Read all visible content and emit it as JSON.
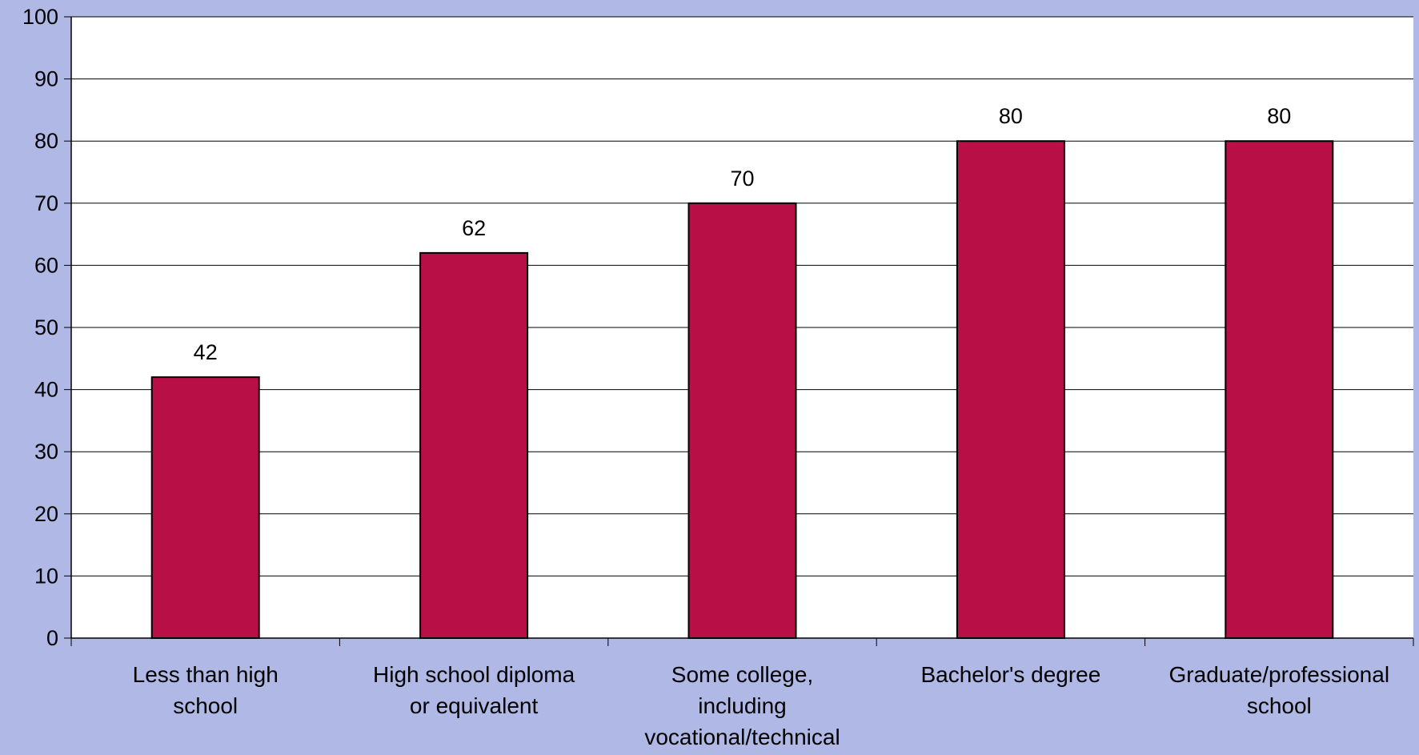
{
  "chart_data": {
    "type": "bar",
    "categories": [
      [
        "Less than high",
        "school"
      ],
      [
        "High school diploma",
        "or equivalent"
      ],
      [
        "Some college,",
        "including",
        "vocational/technical"
      ],
      [
        "Bachelor's degree"
      ],
      [
        "Graduate/professional",
        "school"
      ]
    ],
    "values": [
      42,
      62,
      70,
      80,
      80
    ],
    "data_labels": [
      "42",
      "62",
      "70",
      "80",
      "80"
    ],
    "ylim": [
      0,
      100
    ],
    "yticks": [
      0,
      10,
      20,
      30,
      40,
      50,
      60,
      70,
      80,
      90,
      100
    ],
    "title": "",
    "xlabel": "",
    "ylabel": "",
    "grid": true,
    "legend": "none",
    "colors": {
      "background": "#b0b8e6",
      "plot_area": "#ffffff",
      "bar": "#b80f47",
      "bar_outline": "#000000",
      "gridline": "#000000"
    }
  }
}
